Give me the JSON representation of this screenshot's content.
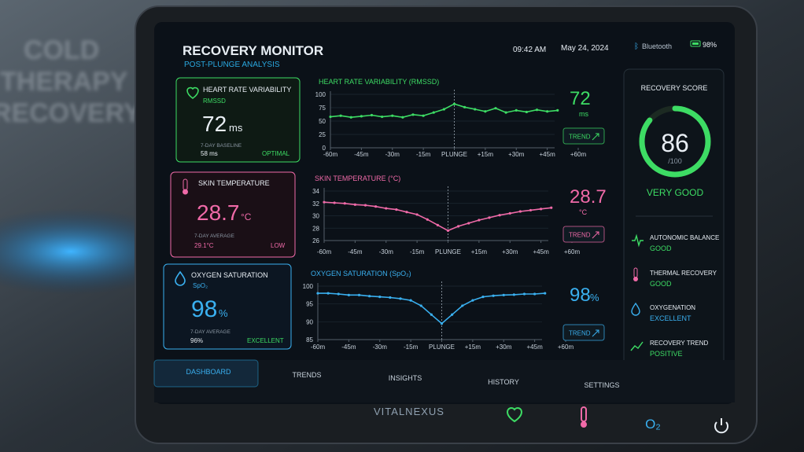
{
  "background_sign": [
    "COLD",
    "THERAPY",
    "RECOVERY"
  ],
  "header": {
    "title": "RECOVERY MONITOR",
    "subtitle": "POST-PLUNGE ANALYSIS",
    "time": "09:42 AM",
    "date": "May 24, 2024",
    "bluetooth": "Bluetooth",
    "battery": "98%"
  },
  "cards": [
    {
      "label": "HEART RATE VARIABILITY",
      "sub": "RMSSD",
      "value": "72",
      "unit": "ms",
      "ref_label": "7-DAY BASELINE",
      "ref": "58 ms",
      "status": "OPTIMAL"
    },
    {
      "label": "SKIN TEMPERATURE",
      "value": "28.7",
      "unit": "°C",
      "ref_label": "7-DAY AVERAGE",
      "ref": "29.1°C",
      "status": "LOW"
    },
    {
      "label": "OXYGEN SATURATION",
      "sub": "SpO₂",
      "value": "98",
      "unit": "%",
      "ref_label": "7-DAY AVERAGE",
      "ref": "96%",
      "status": "EXCELLENT"
    }
  ],
  "chart_data": [
    {
      "type": "line",
      "title": "HEART RATE VARIABILITY (RMSSD)",
      "color": "#3ddc64",
      "x": [
        -60,
        -55,
        -50,
        -45,
        -40,
        -35,
        -30,
        -25,
        -20,
        -15,
        -10,
        -5,
        0,
        5,
        10,
        15,
        20,
        25,
        30,
        35,
        40,
        45,
        50
      ],
      "values": [
        58,
        60,
        57,
        59,
        61,
        58,
        60,
        57,
        62,
        60,
        66,
        72,
        82,
        76,
        72,
        68,
        74,
        66,
        70,
        67,
        71,
        68,
        70
      ],
      "xlim": [
        -60,
        60
      ],
      "ylim": [
        0,
        100
      ],
      "yticks": [
        0,
        25,
        50,
        75,
        100
      ],
      "xticks": [
        {
          "value": -60,
          "label": "-60m"
        },
        {
          "value": -45,
          "label": "-45m"
        },
        {
          "value": -30,
          "label": "-30m"
        },
        {
          "value": -15,
          "label": "-15m"
        },
        {
          "value": 0,
          "label": "PLUNGE"
        },
        {
          "value": 15,
          "label": "+15m"
        },
        {
          "value": 30,
          "label": "+30m"
        },
        {
          "value": 45,
          "label": "+45m"
        },
        {
          "value": 60,
          "label": "+60m"
        }
      ]
    },
    {
      "type": "line",
      "title": "SKIN TEMPERATURE (°C)",
      "color": "#f06aa8",
      "x": [
        -60,
        -55,
        -50,
        -45,
        -40,
        -35,
        -30,
        -25,
        -20,
        -15,
        -10,
        -5,
        0,
        5,
        10,
        15,
        20,
        25,
        30,
        35,
        40,
        45,
        50
      ],
      "values": [
        32.2,
        32.1,
        32,
        31.8,
        31.7,
        31.5,
        31.2,
        31,
        30.6,
        30.2,
        29.4,
        28.5,
        27.6,
        28.3,
        28.8,
        29.3,
        29.7,
        30.1,
        30.4,
        30.7,
        30.9,
        31.1,
        31.3
      ],
      "xlim": [
        -60,
        60
      ],
      "ylim": [
        26,
        34
      ],
      "yticks": [
        26,
        28,
        30,
        32,
        34
      ],
      "xticks": [
        {
          "value": -60,
          "label": "-60m"
        },
        {
          "value": -45,
          "label": "-45m"
        },
        {
          "value": -30,
          "label": "-30m"
        },
        {
          "value": -15,
          "label": "-15m"
        },
        {
          "value": 0,
          "label": "PLUNGE"
        },
        {
          "value": 15,
          "label": "+15m"
        },
        {
          "value": 30,
          "label": "+30m"
        },
        {
          "value": 45,
          "label": "+45m"
        },
        {
          "value": 60,
          "label": "+60m"
        }
      ]
    },
    {
      "type": "line",
      "title": "OXYGEN SATURATION (SpO₂)",
      "color": "#3ab0f0",
      "x": [
        -60,
        -55,
        -50,
        -45,
        -40,
        -35,
        -30,
        -25,
        -20,
        -15,
        -10,
        -5,
        0,
        5,
        10,
        15,
        20,
        25,
        30,
        35,
        40,
        45,
        50
      ],
      "values": [
        98,
        98,
        97.8,
        97.5,
        97.5,
        97.2,
        97,
        96.8,
        96.5,
        96,
        94.5,
        92,
        89.5,
        92,
        94.5,
        96,
        97,
        97.3,
        97.5,
        97.6,
        97.8,
        97.8,
        98
      ],
      "xlim": [
        -60,
        60
      ],
      "ylim": [
        85,
        100
      ],
      "yticks": [
        85,
        90,
        95,
        100
      ],
      "xticks": [
        {
          "value": -60,
          "label": "-60m"
        },
        {
          "value": -45,
          "label": "-45m"
        },
        {
          "value": -30,
          "label": "-30m"
        },
        {
          "value": -15,
          "label": "-15m"
        },
        {
          "value": 0,
          "label": "PLUNGE"
        },
        {
          "value": 15,
          "label": "+15m"
        },
        {
          "value": 30,
          "label": "+30m"
        },
        {
          "value": 45,
          "label": "+45m"
        },
        {
          "value": 60,
          "label": "+60m"
        }
      ]
    }
  ],
  "readouts": [
    {
      "value": "72",
      "unit": "ms",
      "button": "TREND"
    },
    {
      "value": "28.7",
      "unit": "°C",
      "button": "TREND"
    },
    {
      "value": "98",
      "unit": "%",
      "button": "TREND"
    }
  ],
  "recovery": {
    "title": "RECOVERY SCORE",
    "score": 86,
    "scale": {
      "value": 100,
      "label": "/100"
    },
    "rating": "VERY GOOD",
    "items": [
      {
        "label": "AUTONOMIC BALANCE",
        "status": "GOOD"
      },
      {
        "label": "THERMAL RECOVERY",
        "status": "GOOD"
      },
      {
        "label": "OXYGENATION",
        "status": "EXCELLENT"
      },
      {
        "label": "RECOVERY TREND",
        "status": "POSITIVE"
      }
    ]
  },
  "nav": [
    "DASHBOARD",
    "TRENDS",
    "INSIGHTS",
    "HISTORY",
    "SETTINGS"
  ],
  "brand": "VITALNEXUS",
  "hardware_label": "O₂"
}
